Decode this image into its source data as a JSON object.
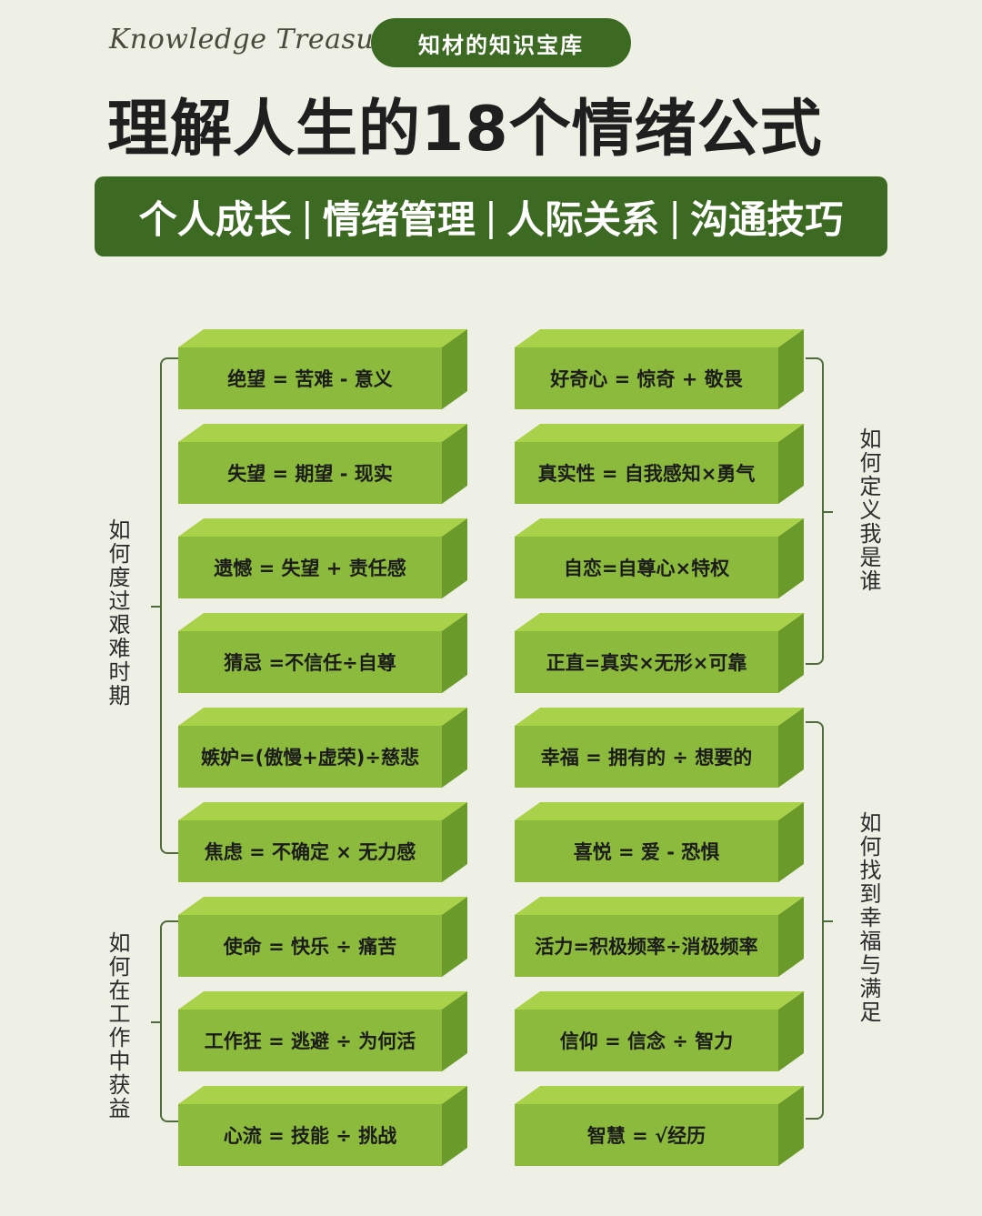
{
  "header": {
    "brand_script": "Knowledge Treasure",
    "brand_pill": "知材的知识宝库",
    "title": "理解人生的18个情绪公式",
    "banner_items": [
      "个人成长",
      "情绪管理",
      "人际关系",
      "沟通技巧"
    ],
    "banner_separator": "|"
  },
  "groups": {
    "hard_times": "如何度过艰难时期",
    "work_gain": "如何在工作中获益",
    "who_am_i": "如何定义我是谁",
    "happiness": "如何找到幸福与满足"
  },
  "left_formulas": [
    "绝望 = 苦难 - 意义",
    "失望 = 期望 - 现实",
    "遗憾 = 失望 + 责任感",
    "猜忌 =不信任÷自尊",
    "嫉妒=(傲慢+虚荣)÷慈悲",
    "焦虑 = 不确定 × 无力感",
    "使命 = 快乐 ÷ 痛苦",
    "工作狂 = 逃避 ÷ 为何活",
    "心流 = 技能 ÷ 挑战"
  ],
  "right_formulas": [
    "好奇心 = 惊奇 + 敬畏",
    "真实性 = 自我感知×勇气",
    "自恋=自尊心×特权",
    "正直=真实×无形×可靠",
    "幸福 = 拥有的 ÷ 想要的",
    "喜悦 = 爱 - 恐惧",
    "活力=积极频率÷消极频率",
    "信仰 = 信念 ÷ 智力",
    "智慧 = √经历"
  ],
  "colors": {
    "background": "#eef0e6",
    "dark_green": "#3d6a22",
    "block_face": "#8cba3c",
    "block_top": "#a9d14a",
    "block_side": "#6a9a2a"
  }
}
